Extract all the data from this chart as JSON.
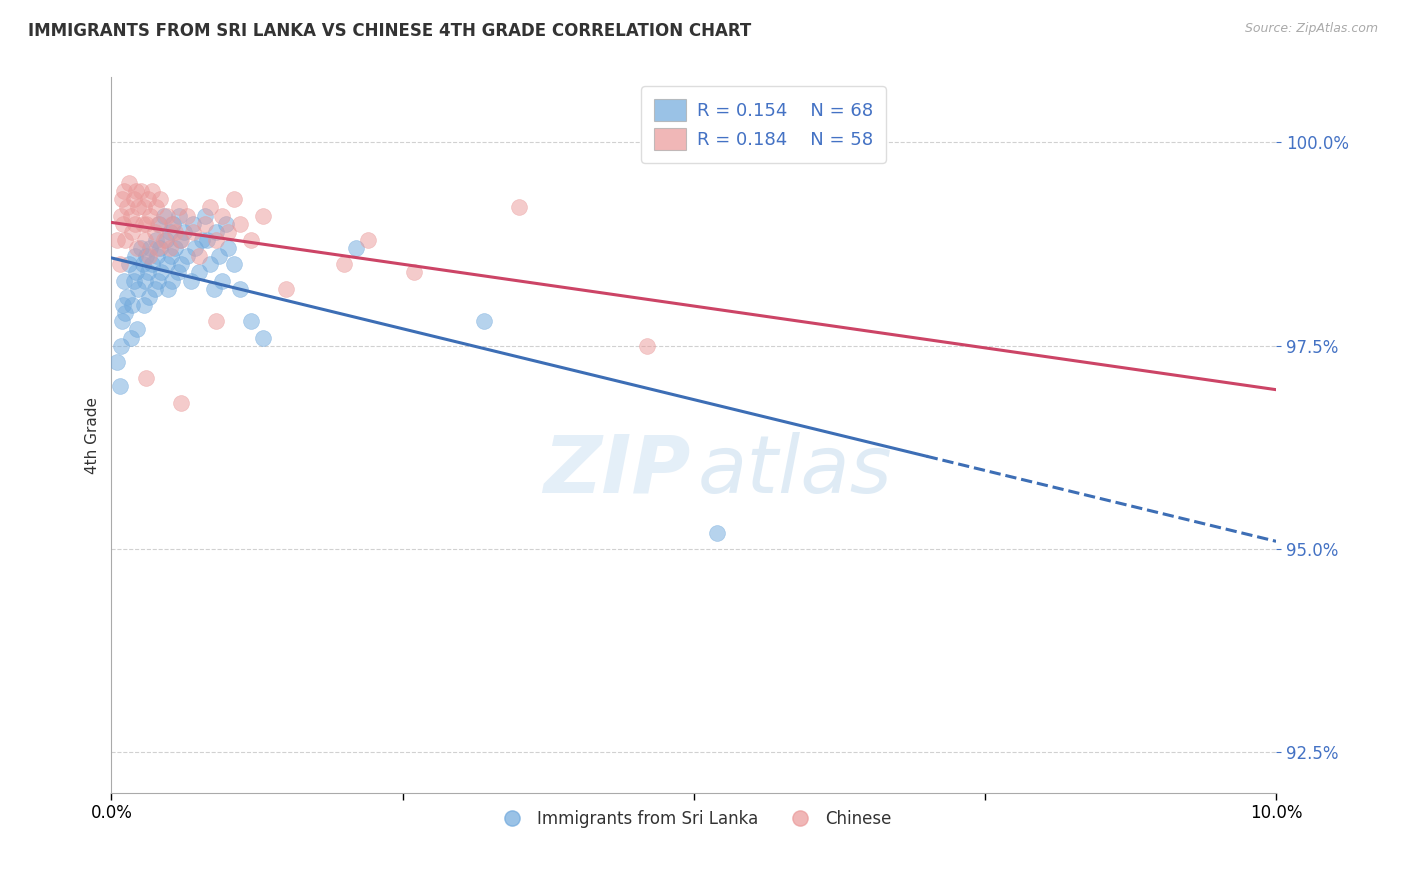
{
  "title": "IMMIGRANTS FROM SRI LANKA VS CHINESE 4TH GRADE CORRELATION CHART",
  "source": "Source: ZipAtlas.com",
  "ylabel": "4th Grade",
  "xlim": [
    0.0,
    10.0
  ],
  "ylim": [
    92.0,
    100.8
  ],
  "yticks": [
    92.5,
    95.0,
    97.5,
    100.0
  ],
  "xticks": [
    0.0,
    2.5,
    5.0,
    7.5,
    10.0
  ],
  "xtick_labels": [
    "0.0%",
    "",
    "",
    "",
    "10.0%"
  ],
  "ytick_labels": [
    "92.5%",
    "95.0%",
    "97.5%",
    "100.0%"
  ],
  "legend_blue_r": "R = 0.154",
  "legend_blue_n": "N = 68",
  "legend_pink_r": "R = 0.184",
  "legend_pink_n": "N = 58",
  "legend_label_blue": "Immigrants from Sri Lanka",
  "legend_label_pink": "Chinese",
  "blue_color": "#6fa8dc",
  "pink_color": "#ea9999",
  "blue_line_color": "#3d6eb5",
  "pink_line_color": "#cc4466",
  "blue_scatter_x": [
    0.05,
    0.07,
    0.08,
    0.09,
    0.1,
    0.11,
    0.12,
    0.13,
    0.15,
    0.17,
    0.18,
    0.19,
    0.2,
    0.21,
    0.22,
    0.23,
    0.25,
    0.27,
    0.28,
    0.29,
    0.3,
    0.31,
    0.32,
    0.33,
    0.35,
    0.37,
    0.38,
    0.39,
    0.4,
    0.41,
    0.42,
    0.43,
    0.45,
    0.47,
    0.48,
    0.49,
    0.5,
    0.51,
    0.52,
    0.53,
    0.55,
    0.57,
    0.58,
    0.59,
    0.6,
    0.62,
    0.65,
    0.68,
    0.7,
    0.72,
    0.75,
    0.78,
    0.8,
    0.82,
    0.85,
    0.88,
    0.9,
    0.92,
    0.95,
    0.98,
    1.0,
    1.05,
    1.1,
    1.2,
    1.3,
    2.1,
    3.2,
    5.2
  ],
  "blue_scatter_y": [
    97.3,
    97.0,
    97.5,
    97.8,
    98.0,
    98.3,
    97.9,
    98.1,
    98.5,
    97.6,
    98.0,
    98.3,
    98.6,
    98.4,
    97.7,
    98.2,
    98.7,
    98.5,
    98.0,
    98.3,
    98.6,
    98.4,
    98.1,
    98.7,
    98.5,
    98.2,
    98.8,
    98.6,
    98.3,
    99.0,
    98.7,
    98.4,
    99.1,
    98.8,
    98.5,
    98.2,
    98.9,
    98.6,
    98.3,
    99.0,
    98.7,
    98.4,
    99.1,
    98.8,
    98.5,
    98.9,
    98.6,
    98.3,
    99.0,
    98.7,
    98.4,
    98.8,
    99.1,
    98.8,
    98.5,
    98.2,
    98.9,
    98.6,
    98.3,
    99.0,
    98.7,
    98.5,
    98.2,
    97.8,
    97.6,
    98.7,
    97.8,
    95.2
  ],
  "pink_scatter_x": [
    0.05,
    0.07,
    0.08,
    0.09,
    0.1,
    0.11,
    0.12,
    0.13,
    0.15,
    0.17,
    0.18,
    0.19,
    0.2,
    0.21,
    0.22,
    0.23,
    0.25,
    0.27,
    0.28,
    0.29,
    0.3,
    0.31,
    0.32,
    0.33,
    0.35,
    0.37,
    0.38,
    0.39,
    0.4,
    0.42,
    0.45,
    0.48,
    0.5,
    0.52,
    0.55,
    0.58,
    0.6,
    0.65,
    0.7,
    0.75,
    0.8,
    0.85,
    0.9,
    0.95,
    1.0,
    1.05,
    1.1,
    1.2,
    1.3,
    2.0,
    2.2,
    2.6,
    3.5,
    4.6,
    0.3,
    0.6,
    0.9,
    1.5
  ],
  "pink_scatter_y": [
    98.8,
    98.5,
    99.1,
    99.3,
    99.0,
    99.4,
    98.8,
    99.2,
    99.5,
    99.1,
    98.9,
    99.3,
    99.0,
    99.4,
    98.7,
    99.2,
    99.4,
    99.0,
    99.2,
    98.8,
    99.0,
    99.3,
    98.6,
    99.1,
    99.4,
    98.9,
    99.2,
    98.7,
    99.0,
    99.3,
    98.8,
    99.1,
    98.7,
    99.0,
    98.9,
    99.2,
    98.8,
    99.1,
    98.9,
    98.6,
    99.0,
    99.2,
    98.8,
    99.1,
    98.9,
    99.3,
    99.0,
    98.8,
    99.1,
    98.5,
    98.8,
    98.4,
    99.2,
    97.5,
    97.1,
    96.8,
    97.8,
    98.2
  ]
}
